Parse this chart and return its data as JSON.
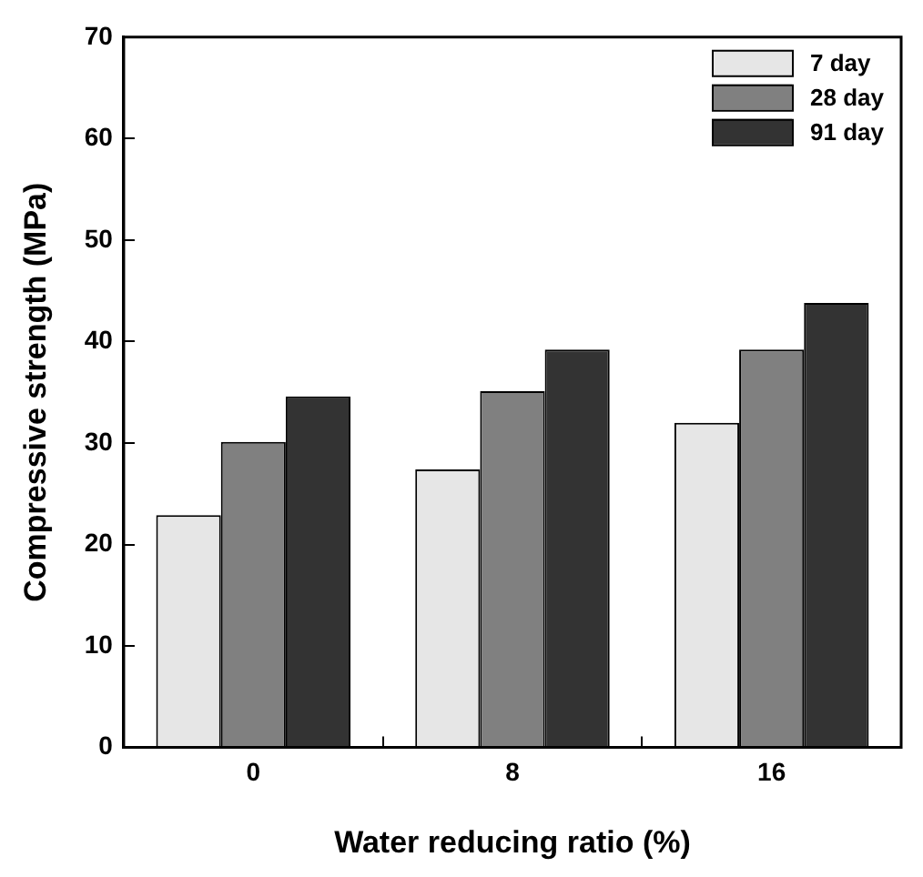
{
  "chart_data": {
    "type": "bar",
    "xlabel": "Water reducing ratio (%)",
    "ylabel": "Compressive strength (MPa)",
    "categories": [
      "0",
      "8",
      "16"
    ],
    "series": [
      {
        "name": "7 day",
        "color": "#e6e6e6",
        "values": [
          22.9,
          27.4,
          32.0
        ]
      },
      {
        "name": "28 day",
        "color": "#808080",
        "values": [
          30.1,
          35.1,
          39.2
        ]
      },
      {
        "name": "91 day",
        "color": "#333333",
        "values": [
          34.6,
          39.2,
          43.8
        ]
      }
    ],
    "ylim": [
      0,
      70
    ],
    "yticks": [
      0,
      10,
      20,
      30,
      40,
      50,
      60,
      70
    ],
    "grid": false,
    "legend": "top right"
  }
}
